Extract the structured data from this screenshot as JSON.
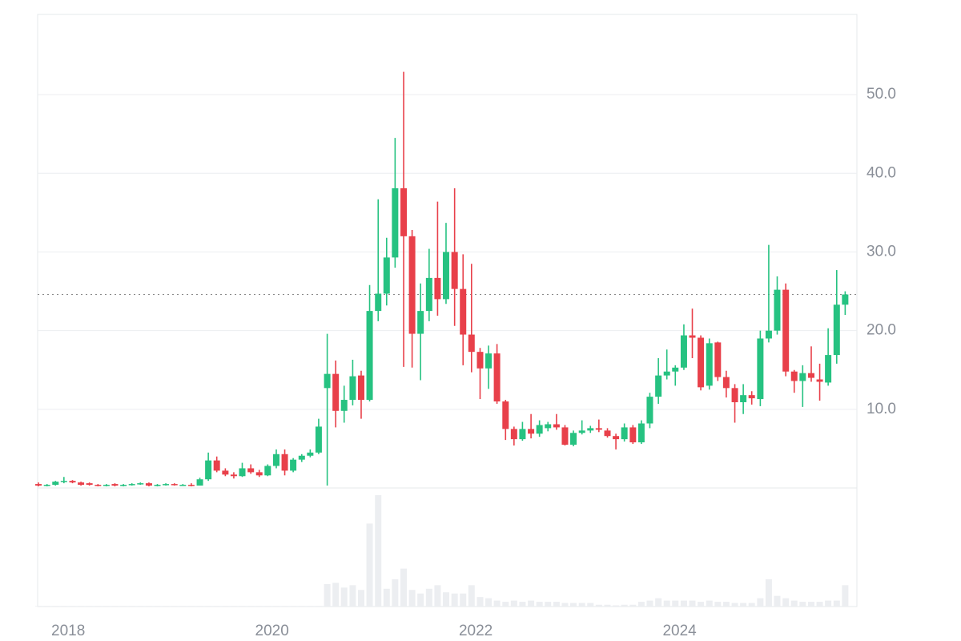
{
  "chart_data": {
    "type": "candlestick",
    "x": [
      2017.708,
      2017.792,
      2017.875,
      2017.958,
      2018.042,
      2018.125,
      2018.208,
      2018.292,
      2018.375,
      2018.458,
      2018.542,
      2018.625,
      2018.708,
      2018.792,
      2018.875,
      2018.958,
      2019.042,
      2019.125,
      2019.208,
      2019.292,
      2019.375,
      2019.458,
      2019.542,
      2019.625,
      2019.708,
      2019.792,
      2019.875,
      2019.958,
      2020.042,
      2020.125,
      2020.208,
      2020.292,
      2020.375,
      2020.458,
      2020.542,
      2020.625,
      2020.708,
      2020.792,
      2020.875,
      2020.958,
      2021.042,
      2021.125,
      2021.208,
      2021.292,
      2021.375,
      2021.458,
      2021.542,
      2021.625,
      2021.708,
      2021.792,
      2021.875,
      2021.958,
      2022.042,
      2022.125,
      2022.208,
      2022.292,
      2022.375,
      2022.458,
      2022.542,
      2022.625,
      2022.708,
      2022.792,
      2022.875,
      2022.958,
      2023.042,
      2023.125,
      2023.208,
      2023.292,
      2023.375,
      2023.458,
      2023.542,
      2023.625,
      2023.708,
      2023.792,
      2023.875,
      2023.958,
      2024.042,
      2024.125,
      2024.208,
      2024.292,
      2024.375,
      2024.458,
      2024.542,
      2024.625,
      2024.708,
      2024.792,
      2024.875,
      2024.958,
      2025.042,
      2025.125,
      2025.208,
      2025.292,
      2025.375,
      2025.458,
      2025.542,
      2025.625
    ],
    "open": [
      0.5,
      0.3,
      0.4,
      0.8,
      0.9,
      0.7,
      0.6,
      0.4,
      0.3,
      0.5,
      0.3,
      0.4,
      0.5,
      0.6,
      0.3,
      0.4,
      0.5,
      0.4,
      0.4,
      0.3,
      1.1,
      3.5,
      2.2,
      1.7,
      1.5,
      2.5,
      2.0,
      1.6,
      2.8,
      4.3,
      2.2,
      3.6,
      4.1,
      4.5,
      12.7,
      14.5,
      9.8,
      11.2,
      14.3,
      11.2,
      22.5,
      24.7,
      29.3,
      38.1,
      32,
      19.6,
      22.5,
      26.7,
      24,
      30,
      25.3,
      19.5,
      17.3,
      15.2,
      17.1,
      11,
      7.5,
      6.2,
      7.5,
      6.9,
      7.6,
      8.1,
      7.7,
      5.5,
      7,
      7.3,
      7.6,
      7.3,
      6.6,
      6.2,
      7.7,
      5.8,
      8.2,
      11.6,
      14.3,
      14.8,
      15.3,
      19.4,
      19.1,
      13,
      18.5,
      14.1,
      12.7,
      10.9,
      11.8,
      11.3,
      19,
      20,
      25.2,
      14.8,
      13.6,
      14.6,
      13.8,
      13.4,
      16.9,
      23.3
    ],
    "high": [
      0.7,
      0.5,
      0.9,
      1.4,
      1.0,
      0.8,
      0.7,
      0.5,
      0.5,
      0.6,
      0.5,
      0.6,
      0.7,
      0.7,
      0.5,
      0.6,
      0.6,
      0.5,
      0.6,
      1.3,
      4.5,
      4.0,
      2.5,
      2.0,
      3.2,
      3.0,
      2.3,
      3.0,
      4.9,
      4.9,
      3.8,
      4.3,
      4.9,
      8.8,
      19.6,
      16.2,
      13,
      16.3,
      14.9,
      25.8,
      36.7,
      31.8,
      44.5,
      52.9,
      32.8,
      26,
      30.4,
      36.4,
      33.7,
      38.1,
      29.7,
      28.5,
      17.8,
      18.1,
      18.3,
      11.2,
      7.8,
      8.4,
      9.4,
      8.6,
      8.4,
      9.4,
      8,
      7.3,
      8.6,
      7.9,
      8.7,
      7.6,
      6.9,
      8.2,
      8.0,
      8.6,
      12.1,
      16.5,
      17.6,
      15.6,
      20.8,
      22.8,
      19.4,
      19,
      18.6,
      14.9,
      13.2,
      13.2,
      12.3,
      20,
      30.9,
      26.9,
      26,
      15,
      15.6,
      18,
      15.8,
      20.3,
      27.7,
      25
    ],
    "low": [
      0.2,
      0.2,
      0.3,
      0.6,
      0.6,
      0.3,
      0.3,
      0.2,
      0.2,
      0.2,
      0.2,
      0.3,
      0.4,
      0.2,
      0.2,
      0.3,
      0.3,
      0.3,
      0.2,
      0.3,
      0.9,
      2.0,
      1.5,
      1.2,
      1.4,
      1.8,
      1.4,
      1.5,
      2.5,
      1.6,
      2.0,
      3.3,
      3.9,
      4.3,
      0.3,
      7.7,
      8.3,
      10.5,
      8.8,
      11,
      21.2,
      23.2,
      28,
      15.4,
      15.3,
      13.7,
      21.2,
      21.9,
      23.4,
      20.6,
      15.6,
      14.7,
      11.3,
      12.6,
      10.7,
      6.1,
      5.4,
      6,
      6.3,
      6.5,
      7.2,
      7.4,
      5.4,
      5.3,
      6.8,
      7,
      7.1,
      6.4,
      4.9,
      5.9,
      5.6,
      5.6,
      7.6,
      10.7,
      13.8,
      13,
      15,
      16.5,
      12.4,
      12.5,
      13.6,
      11.5,
      8.3,
      9.4,
      10.6,
      10.4,
      18.5,
      19.5,
      14.2,
      12.1,
      10.3,
      13.5,
      11.1,
      13,
      15.8,
      22
    ],
    "close": [
      0.3,
      0.4,
      0.8,
      0.9,
      0.7,
      0.4,
      0.4,
      0.3,
      0.4,
      0.3,
      0.4,
      0.5,
      0.6,
      0.3,
      0.4,
      0.5,
      0.4,
      0.4,
      0.3,
      1.1,
      3.5,
      2.2,
      1.7,
      1.5,
      2.5,
      2.0,
      1.6,
      2.8,
      4.3,
      2.2,
      3.6,
      4.1,
      4.5,
      7.8,
      14.5,
      9.8,
      11.2,
      14.2,
      11.2,
      22.5,
      24.7,
      29.3,
      38.1,
      32,
      19.6,
      22.5,
      26.7,
      24,
      30,
      25.3,
      19.5,
      17.3,
      15.2,
      17.1,
      11,
      7.5,
      6.2,
      7.5,
      6.9,
      8,
      8.1,
      7.7,
      5.5,
      7,
      7.3,
      7.6,
      7.4,
      6.6,
      6.2,
      7.7,
      5.8,
      8.2,
      11.6,
      14.3,
      14.8,
      15.3,
      19.4,
      19.1,
      12.8,
      18.4,
      14.1,
      12.7,
      10.9,
      11.8,
      11.4,
      19,
      20,
      25.2,
      14.8,
      13.6,
      14.6,
      14,
      13.5,
      16.9,
      23.3,
      24.6
    ],
    "volume": [
      0.5,
      0.5,
      0.5,
      0.5,
      0.5,
      0.5,
      0.5,
      0.5,
      0.5,
      0.5,
      0.5,
      0.5,
      0.5,
      0.5,
      0.5,
      0.5,
      0.5,
      0.5,
      0.5,
      0.5,
      0.5,
      0.5,
      0.5,
      0.5,
      0.5,
      0.5,
      0.5,
      0.5,
      0.5,
      0.5,
      0.5,
      0.5,
      0.5,
      0.5,
      19,
      20,
      16,
      18,
      14,
      70,
      94,
      15,
      23,
      32,
      14,
      11,
      15,
      18,
      12,
      11,
      11,
      18,
      8,
      7,
      5,
      4,
      5,
      4,
      5,
      4,
      4,
      4,
      3,
      3,
      3,
      3,
      1.5,
      1.5,
      1,
      1.5,
      1.5,
      4,
      5,
      7,
      5,
      5,
      5,
      5,
      4,
      5,
      4,
      4,
      3,
      3,
      3,
      7,
      23,
      9,
      7,
      5,
      4,
      4,
      4,
      5,
      5,
      18
    ],
    "up_color": "#26c281",
    "down_color": "#e8404a",
    "volume_color": "#eceef1",
    "xlim": [
      2017.7,
      2025.74
    ],
    "xticks": [
      2018,
      2020,
      2022,
      2024
    ],
    "ylim": [
      0,
      60.2
    ],
    "yticks": [
      {
        "value": 10,
        "label": "10.0"
      },
      {
        "value": 20,
        "label": "20.0"
      },
      {
        "value": 30,
        "label": "30.0"
      },
      {
        "value": 40,
        "label": "40.0"
      },
      {
        "value": 50,
        "label": "50.0"
      }
    ],
    "y2lim": [
      0,
      100
    ],
    "grid": true
  }
}
